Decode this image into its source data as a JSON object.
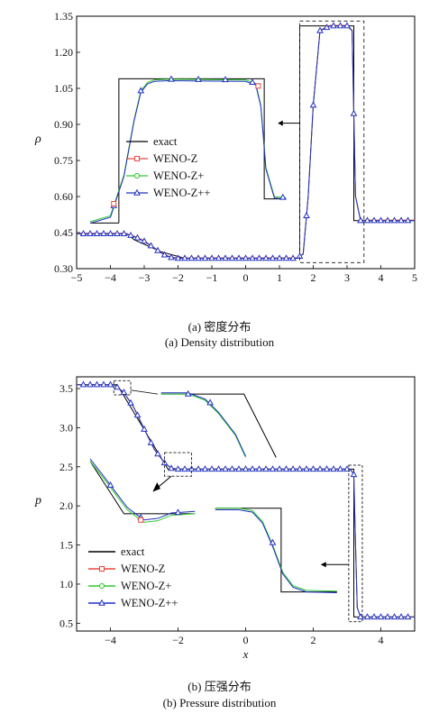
{
  "chart_data": [
    {
      "type": "line",
      "ylabel": "ρ",
      "xlabel": "",
      "xlim": [
        -5,
        5
      ],
      "ylim": [
        0.3,
        1.35
      ],
      "xticks": [
        "−5",
        "−4",
        "−3",
        "−2",
        "−1",
        "0",
        "1",
        "2",
        "3",
        "4",
        "5"
      ],
      "yticks": [
        "0.30",
        "0.45",
        "0.60",
        "0.75",
        "0.90",
        "1.05",
        "1.20",
        "1.35"
      ],
      "legend": [
        "exact",
        "WENO-Z",
        "WENO-Z+",
        "WENO-Z++"
      ],
      "series": [
        {
          "name": "exact",
          "x": [
            -5,
            -3.5,
            -3.3,
            -2.5,
            -1.8,
            1.6,
            1.6,
            1.9,
            1.9,
            3.2,
            3.2,
            5
          ],
          "y": [
            0.445,
            0.445,
            0.42,
            0.37,
            0.343,
            0.343,
            1.31,
            1.31,
            1.31,
            1.31,
            0.5,
            0.5
          ]
        },
        {
          "name": "WENO-Z++",
          "x": [
            -5,
            -3.6,
            -3.4,
            -3.2,
            -3.0,
            -2.8,
            -2.6,
            -2.4,
            -2.2,
            -2.0,
            -1.6,
            1.5,
            1.7,
            1.85,
            2.0,
            2.2,
            2.5,
            3.0,
            3.15,
            3.25,
            3.4,
            5
          ],
          "y": [
            0.445,
            0.445,
            0.438,
            0.428,
            0.414,
            0.395,
            0.375,
            0.357,
            0.346,
            0.343,
            0.343,
            0.343,
            0.36,
            0.6,
            0.98,
            1.29,
            1.31,
            1.31,
            1.29,
            0.6,
            0.5,
            0.5
          ]
        }
      ],
      "inset_exact": {
        "x": [
          -3.75,
          -3.75,
          0.55,
          0.55
        ],
        "y": [
          0.49,
          1.09,
          1.09,
          0.59
        ]
      }
    },
    {
      "type": "line",
      "ylabel": "p",
      "xlabel": "x",
      "xlim": [
        -5,
        5
      ],
      "ylim": [
        0.4,
        3.65
      ],
      "xticks": [
        "−4",
        "−2",
        "0",
        "2",
        "4"
      ],
      "yticks": [
        "0.5",
        "1.0",
        "1.5",
        "2.0",
        "2.5",
        "3.0",
        "3.5"
      ],
      "legend": [
        "exact",
        "WENO-Z",
        "WENO-Z+",
        "WENO-Z++"
      ],
      "series": [
        {
          "name": "exact",
          "x": [
            -5,
            -3.8,
            -2.3,
            -2.3,
            3.2,
            3.2,
            5
          ],
          "y": [
            3.55,
            3.55,
            2.47,
            2.47,
            2.47,
            0.58,
            0.58
          ]
        },
        {
          "name": "WENO-Z++",
          "x": [
            -5,
            -3.9,
            -3.6,
            -3.3,
            -3.0,
            -2.7,
            -2.4,
            -2.2,
            -2.0,
            3.1,
            3.2,
            3.25,
            3.3,
            3.4,
            5
          ],
          "y": [
            3.55,
            3.55,
            3.45,
            3.25,
            2.98,
            2.72,
            2.55,
            2.48,
            2.47,
            2.47,
            2.4,
            1.5,
            0.7,
            0.58,
            0.58
          ]
        }
      ]
    }
  ],
  "captions": {
    "a_cn": "(a) 密度分布",
    "a_en": "(a) Density distribution",
    "b_cn": "(b) 压强分布",
    "b_en": "(b) Pressure distribution"
  },
  "colors": {
    "exact": "#000000",
    "WENO-Z": "#e8483c",
    "WENO-Z+": "#2ecc2e",
    "WENO-Z++": "#2030c0"
  }
}
